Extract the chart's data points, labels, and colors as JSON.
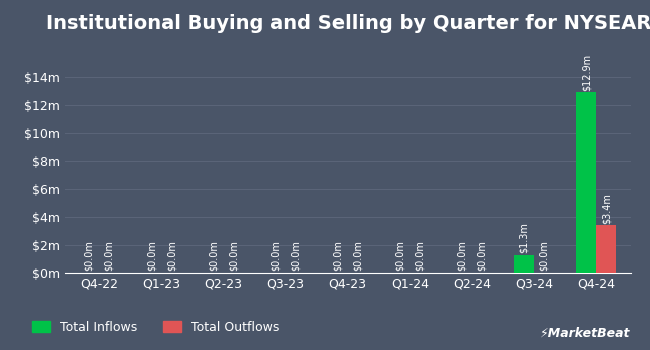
{
  "title": "Institutional Buying and Selling by Quarter for NYSEARCA:CGGE",
  "quarters": [
    "Q4-22",
    "Q1-23",
    "Q2-23",
    "Q3-23",
    "Q4-23",
    "Q1-24",
    "Q2-24",
    "Q3-24",
    "Q4-24"
  ],
  "inflows": [
    0.0,
    0.0,
    0.0,
    0.0,
    0.0,
    0.0,
    0.0,
    1.3,
    12.9
  ],
  "outflows": [
    0.0,
    0.0,
    0.0,
    0.0,
    0.0,
    0.0,
    0.0,
    0.0,
    3.4
  ],
  "inflow_labels": [
    "$0.0m",
    "$0.0m",
    "$0.0m",
    "$0.0m",
    "$0.0m",
    "$0.0m",
    "$0.0m",
    "$1.3m",
    "$12.9m"
  ],
  "outflow_labels": [
    "$0.0m",
    "$0.0m",
    "$0.0m",
    "$0.0m",
    "$0.0m",
    "$0.0m",
    "$0.0m",
    "$0.0m",
    "$3.4m"
  ],
  "inflow_color": "#00c248",
  "outflow_color": "#e05555",
  "background_color": "#4a5568",
  "grid_color": "#5a6478",
  "text_color": "#ffffff",
  "title_fontsize": 14,
  "tick_fontsize": 9,
  "label_fontsize": 7,
  "legend_fontsize": 9,
  "ylim": [
    0,
    15
  ],
  "yticks": [
    0,
    2,
    4,
    6,
    8,
    10,
    12,
    14
  ],
  "ytick_labels": [
    "$0m",
    "$2m",
    "$4m",
    "$6m",
    "$8m",
    "$10m",
    "$12m",
    "$14m"
  ]
}
